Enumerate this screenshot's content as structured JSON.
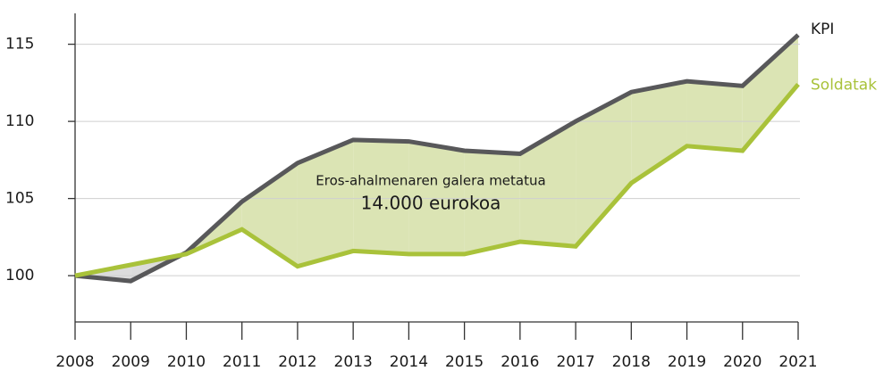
{
  "chart_data": {
    "type": "line",
    "categories": [
      "2008",
      "2009",
      "2010",
      "2011",
      "2012",
      "2013",
      "2014",
      "2015",
      "2016",
      "2017",
      "2018",
      "2019",
      "2020",
      "2021"
    ],
    "series": [
      {
        "name": "KPI",
        "color": "#58585a",
        "values": [
          100,
          99.65,
          101.5,
          104.8,
          107.3,
          108.8,
          108.7,
          108.1,
          107.9,
          110.0,
          111.9,
          112.6,
          112.3,
          115.6
        ]
      },
      {
        "name": "Soldatak",
        "color": "#a9c23a",
        "values": [
          100,
          100.7,
          101.4,
          103.0,
          100.6,
          101.6,
          101.4,
          101.4,
          102.2,
          101.9,
          106.0,
          108.4,
          108.1,
          112.4
        ]
      }
    ],
    "area_colors": [
      "#dbe4b4",
      "#dcdcdc"
    ],
    "annotations": [
      "Eros-ahalmenaren galera metatua",
      "14.000 eurokoa"
    ],
    "ylim": [
      97,
      117
    ],
    "yticks": [
      100,
      105,
      110,
      115
    ],
    "grid": true
  }
}
